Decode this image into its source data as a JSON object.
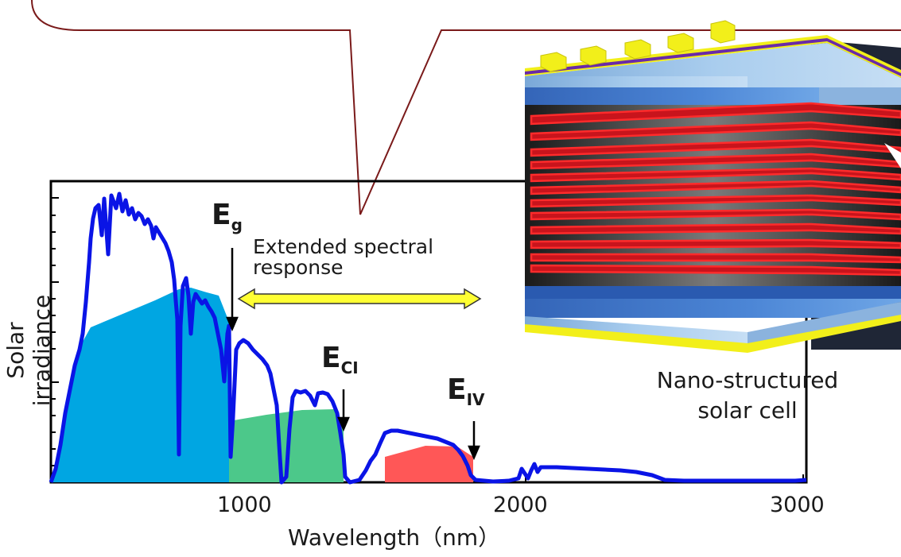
{
  "diagram": {
    "ylabel": "Solar irradiance",
    "xlabel": "Wavelength（nm）",
    "xticks": [
      "1000",
      "2000",
      "3000"
    ],
    "markers": [
      {
        "symbol": "E",
        "subscript": "g"
      },
      {
        "symbol": "E",
        "subscript": "CI"
      },
      {
        "symbol": "E",
        "subscript": "IV"
      }
    ],
    "extended_line1": "Extended spectral",
    "extended_line2": "response",
    "cell_line1": "Nano-structured",
    "cell_line2": "solar cell",
    "colors": {
      "spectrum": "#0a14e6",
      "band_blue": "#00a6e2",
      "band_green": "#4cc88a",
      "band_red": "#ff5757",
      "arrow_fill": "#ffff33",
      "callout_stroke": "#7a1a1a",
      "electrode": "#f2ef1a",
      "contact_purple": "#6a2aa8",
      "layer_blue": "#3a72c8",
      "well_red": "#d0141e"
    }
  }
}
